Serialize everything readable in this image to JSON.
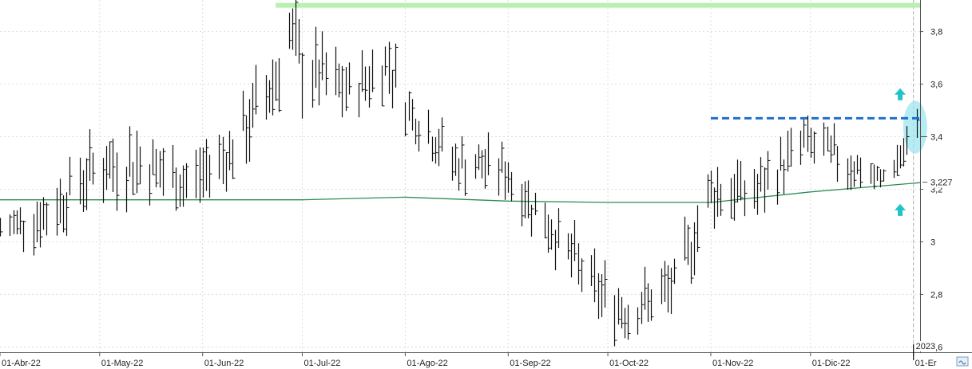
{
  "chart_data": {
    "type": "ohlc",
    "y_axis": {
      "ylim": [
        2.58,
        3.92
      ],
      "ticks": [
        {
          "value": 3.8,
          "label": "3,8"
        },
        {
          "value": 3.6,
          "label": "3,6"
        },
        {
          "value": 3.4,
          "label": "3,4"
        },
        {
          "value": 3.2,
          "label": "3,2"
        },
        {
          "value": 3.0,
          "label": "3"
        },
        {
          "value": 2.8,
          "label": "2,8"
        },
        {
          "value": 2.6,
          "label": "2,6"
        }
      ],
      "price_markers": [
        {
          "value": 3.4,
          "label": "3,4"
        },
        {
          "value": 3.227,
          "label": "3,227"
        }
      ]
    },
    "x_axis": {
      "start": "2022-04-01",
      "end": "2023-01-03",
      "ticks": [
        {
          "date": "2022-04-01",
          "label": "01-Abr-22"
        },
        {
          "date": "2022-05-01",
          "label": "01-May-22"
        },
        {
          "date": "2022-06-01",
          "label": "01-Jun-22"
        },
        {
          "date": "2022-07-01",
          "label": "01-Jul-22"
        },
        {
          "date": "2022-08-01",
          "label": "01-Ago-22"
        },
        {
          "date": "2022-09-01",
          "label": "01-Sep-22"
        },
        {
          "date": "2022-10-01",
          "label": "01-Oct-22"
        },
        {
          "date": "2022-11-01",
          "label": "01-Nov-22"
        },
        {
          "date": "2022-12-01",
          "label": "01-Dic-22"
        },
        {
          "date": "2023-01-01",
          "label": "01-Er"
        }
      ],
      "year_marker": {
        "date": "2023-01-01",
        "label": "2023"
      }
    },
    "series": [
      {
        "kind": "price-bars",
        "points": [
          [
            "2022-04-01",
            3.1,
            3.0
          ],
          [
            "2022-04-15",
            3.2,
            3.0
          ],
          [
            "2022-04-29",
            3.38,
            3.18
          ],
          [
            "2022-05-13",
            3.42,
            3.18
          ],
          [
            "2022-05-27",
            3.32,
            3.12
          ],
          [
            "2022-06-10",
            3.45,
            3.25
          ],
          [
            "2022-06-17",
            3.62,
            3.35
          ],
          [
            "2022-06-24",
            3.76,
            3.55
          ],
          [
            "2022-06-27",
            3.9,
            3.7
          ],
          [
            "2022-07-01",
            3.8,
            3.52
          ],
          [
            "2022-07-15",
            3.66,
            3.48
          ],
          [
            "2022-07-27",
            3.78,
            3.58
          ],
          [
            "2022-08-02",
            3.58,
            3.42
          ],
          [
            "2022-08-16",
            3.38,
            3.22
          ],
          [
            "2022-08-30",
            3.36,
            3.2
          ],
          [
            "2022-09-13",
            3.15,
            2.98
          ],
          [
            "2022-09-27",
            2.92,
            2.72
          ],
          [
            "2022-10-07",
            2.82,
            2.64
          ],
          [
            "2022-10-21",
            2.92,
            2.74
          ],
          [
            "2022-11-01",
            3.3,
            3.08
          ],
          [
            "2022-11-15",
            3.28,
            3.1
          ],
          [
            "2022-11-29",
            3.46,
            3.3
          ],
          [
            "2022-12-12",
            3.38,
            3.22
          ],
          [
            "2022-12-22",
            3.27,
            3.2
          ],
          [
            "2023-01-02",
            3.48,
            3.32
          ]
        ]
      },
      {
        "kind": "moving-average",
        "color": "#2e8b57",
        "points": [
          [
            "2022-04-01",
            3.16
          ],
          [
            "2022-05-15",
            3.16
          ],
          [
            "2022-07-01",
            3.16
          ],
          [
            "2022-08-01",
            3.17
          ],
          [
            "2022-09-01",
            3.155
          ],
          [
            "2022-10-01",
            3.15
          ],
          [
            "2022-11-01",
            3.15
          ],
          [
            "2022-12-01",
            3.19
          ],
          [
            "2023-01-03",
            3.225
          ]
        ]
      }
    ],
    "annotations": [
      {
        "kind": "resistance-line",
        "value": 3.9,
        "from": "2022-06-23",
        "to": "2023-01-03",
        "color": "#b8f0b0"
      },
      {
        "kind": "dashed-level",
        "value": 3.47,
        "from": "2022-11-01",
        "to": "2023-01-03",
        "color": "#1e6fd0"
      },
      {
        "kind": "highlight-ellipse",
        "date": "2023-01-02",
        "value": 3.4,
        "color": "#9ee6ef"
      },
      {
        "kind": "arrow-up",
        "date": "2022-12-28",
        "value": 3.56,
        "color": "#22c3c8"
      },
      {
        "kind": "arrow-up",
        "date": "2022-12-28",
        "value": 3.12,
        "color": "#22c3c8"
      }
    ],
    "grid": true
  },
  "colors": {
    "bars": "#111111",
    "grid": "#dcdcdc",
    "axis": "#555555",
    "cursor": "#b0b0b0"
  }
}
